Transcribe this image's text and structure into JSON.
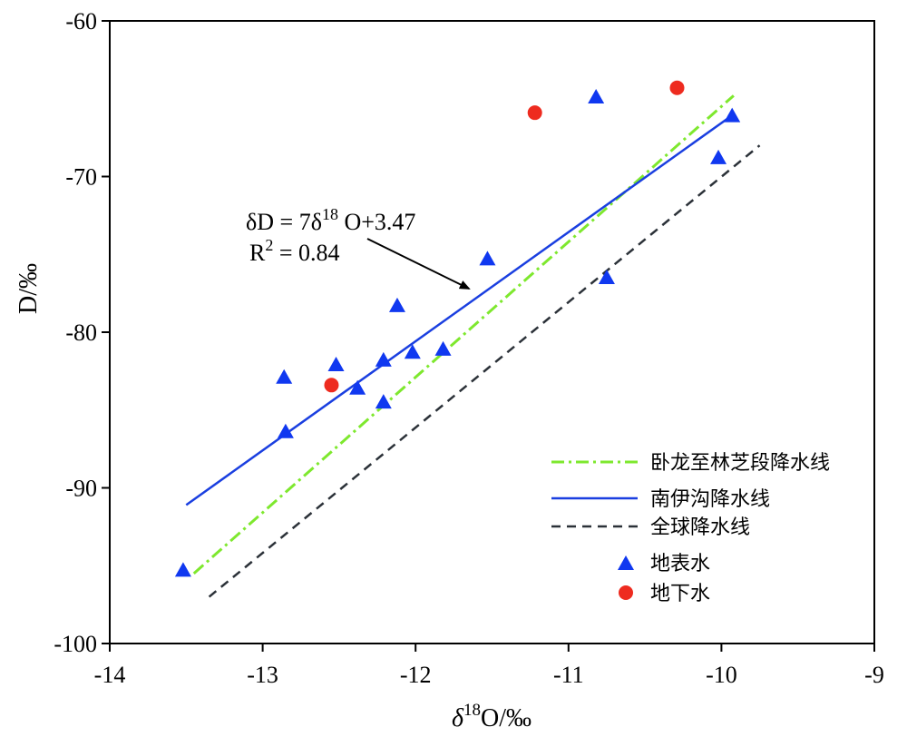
{
  "chart_data": {
    "type": "scatter",
    "xlabel": "δ18O/‰",
    "xlabel_main": "δ",
    "xlabel_sup": "18",
    "xlabel_rest": "O/‰",
    "ylabel": "D/‰",
    "xlim": [
      -14,
      -9
    ],
    "ylim": [
      -100,
      -60
    ],
    "x_ticks": [
      -14,
      -13,
      -12,
      -11,
      -10,
      -9
    ],
    "y_ticks": [
      -60,
      -70,
      -80,
      -90,
      -100
    ],
    "x_tick_labels": [
      "-14",
      "-13",
      "-12",
      "-11",
      "-10",
      "-9"
    ],
    "y_tick_labels": [
      "-60",
      "-70",
      "-80",
      "-90",
      "-100"
    ],
    "grid": false,
    "legend_position": "bottom-right",
    "lines": [
      {
        "name": "卧龙至林芝段降水线",
        "style": "dash-dot",
        "color": "#7ee82e",
        "x": [
          -13.45,
          -9.92
        ],
        "y": [
          -95.5,
          -64.8
        ]
      },
      {
        "name": "南伊沟降水线",
        "style": "solid",
        "color": "#1a3fe0",
        "x": [
          -13.5,
          -9.92
        ],
        "y": [
          -91.1,
          -66.0
        ]
      },
      {
        "name": "全球降水线",
        "style": "dashed",
        "color": "#2b3138",
        "x": [
          -13.35,
          -9.75
        ],
        "y": [
          -97.0,
          -68.0
        ]
      }
    ],
    "series": [
      {
        "name": "地表水",
        "marker": "triangle",
        "color": "#1038f0",
        "x": [
          -13.52,
          -12.85,
          -12.86,
          -12.52,
          -12.38,
          -12.21,
          -12.21,
          -12.12,
          -12.02,
          -11.82,
          -11.53,
          -10.82,
          -10.75,
          -10.02,
          -9.93
        ],
        "y": [
          -95.3,
          -86.4,
          -82.9,
          -82.1,
          -83.6,
          -84.5,
          -81.8,
          -78.3,
          -81.3,
          -81.1,
          -75.3,
          -64.9,
          -76.5,
          -68.8,
          -66.1
        ]
      },
      {
        "name": "地下水",
        "marker": "circle",
        "color": "#ee2b1f",
        "x": [
          -12.55,
          -11.22,
          -10.29
        ],
        "y": [
          -83.4,
          -65.9,
          -64.3
        ]
      }
    ],
    "annotation": {
      "line1_a": "δD = 7δ",
      "line1_sup": "18",
      "line1_b": " O+3.47",
      "line2_a": "R",
      "line2_sup": "2",
      "line2_b": " = 0.84"
    }
  },
  "colors": {
    "axis": "#000000",
    "surface_water": "#1038f0",
    "groundwater": "#ee2b1f"
  }
}
